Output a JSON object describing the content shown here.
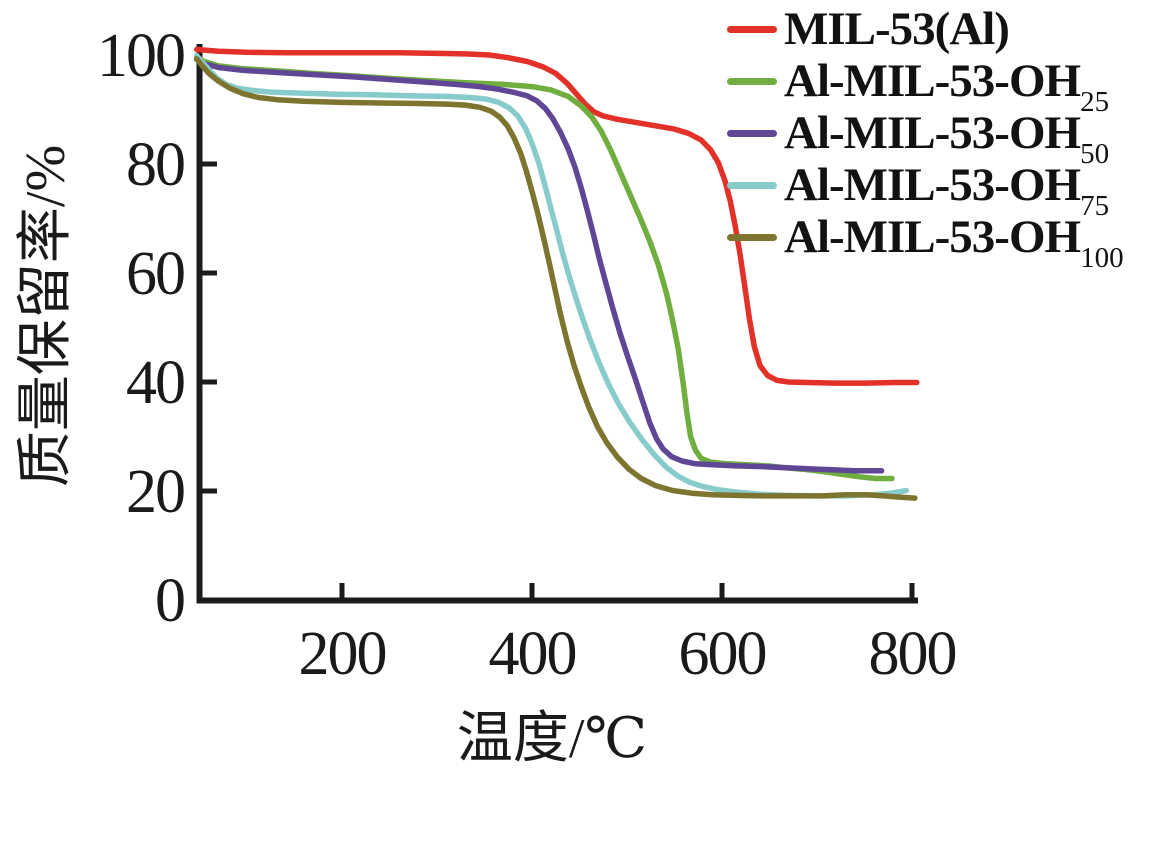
{
  "figure": {
    "background_color": "#ffffff",
    "axis_color": "#1b1b1b",
    "text_color": "#1a1a1a"
  },
  "chart_data": {
    "type": "line",
    "title": "",
    "xlabel": "温度/℃",
    "ylabel": "质量保留率/%",
    "xlim": [
      47,
      805
    ],
    "ylim": [
      0,
      103
    ],
    "x_ticks": [
      200,
      400,
      600,
      800
    ],
    "y_ticks": [
      0,
      20,
      40,
      60,
      80,
      100
    ],
    "grid": false,
    "legend_position": "top-right",
    "series": [
      {
        "id": "mil-53-al",
        "name": "MIL-53(Al)",
        "legend_base": "MIL-53(Al)",
        "legend_sub": "",
        "color": "#e23128",
        "points": [
          [
            47,
            101
          ],
          [
            70,
            100.7
          ],
          [
            100,
            100.5
          ],
          [
            140,
            100.4
          ],
          [
            180,
            100.4
          ],
          [
            220,
            100.4
          ],
          [
            260,
            100.4
          ],
          [
            300,
            100.3
          ],
          [
            330,
            100.2
          ],
          [
            355,
            100.0
          ],
          [
            375,
            99.5
          ],
          [
            395,
            98.8
          ],
          [
            412,
            97.8
          ],
          [
            425,
            96.6
          ],
          [
            437,
            94.8
          ],
          [
            447,
            92.8
          ],
          [
            456,
            91.0
          ],
          [
            465,
            89.6
          ],
          [
            475,
            88.8
          ],
          [
            490,
            88.2
          ],
          [
            510,
            87.6
          ],
          [
            530,
            87.0
          ],
          [
            550,
            86.4
          ],
          [
            565,
            85.6
          ],
          [
            578,
            84.4
          ],
          [
            588,
            82.6
          ],
          [
            596,
            80.3
          ],
          [
            603,
            77.0
          ],
          [
            609,
            73.0
          ],
          [
            614,
            68.5
          ],
          [
            619,
            63.5
          ],
          [
            624,
            57.5
          ],
          [
            629,
            51.5
          ],
          [
            634,
            46.5
          ],
          [
            640,
            43.0
          ],
          [
            648,
            41.2
          ],
          [
            658,
            40.3
          ],
          [
            670,
            40.0
          ],
          [
            690,
            39.9
          ],
          [
            720,
            39.8
          ],
          [
            750,
            39.8
          ],
          [
            780,
            39.9
          ],
          [
            805,
            39.9
          ]
        ]
      },
      {
        "id": "al-mil-53-oh-25",
        "name": "Al-MIL-53-OH25",
        "legend_base": "Al-MIL-53-OH",
        "legend_sub": "25",
        "color": "#6fae3f",
        "points": [
          [
            47,
            99.6
          ],
          [
            55,
            98.8
          ],
          [
            70,
            98.0
          ],
          [
            95,
            97.5
          ],
          [
            130,
            97.1
          ],
          [
            170,
            96.6
          ],
          [
            210,
            96.2
          ],
          [
            250,
            95.7
          ],
          [
            290,
            95.3
          ],
          [
            330,
            94.9
          ],
          [
            370,
            94.6
          ],
          [
            400,
            94.2
          ],
          [
            420,
            93.6
          ],
          [
            438,
            92.4
          ],
          [
            452,
            90.6
          ],
          [
            463,
            88.6
          ],
          [
            473,
            86.0
          ],
          [
            483,
            82.5
          ],
          [
            493,
            78.5
          ],
          [
            503,
            74.5
          ],
          [
            513,
            70.5
          ],
          [
            523,
            66.3
          ],
          [
            533,
            61.5
          ],
          [
            542,
            56.0
          ],
          [
            549,
            50.5
          ],
          [
            554,
            46.0
          ],
          [
            559,
            40.0
          ],
          [
            563,
            34.5
          ],
          [
            567,
            30.0
          ],
          [
            572,
            27.5
          ],
          [
            578,
            26.0
          ],
          [
            588,
            25.3
          ],
          [
            605,
            25.0
          ],
          [
            625,
            24.8
          ],
          [
            648,
            24.6
          ],
          [
            665,
            24.3
          ],
          [
            685,
            24.0
          ],
          [
            705,
            23.6
          ],
          [
            725,
            23.1
          ],
          [
            745,
            22.6
          ],
          [
            762,
            22.3
          ],
          [
            779,
            22.3
          ]
        ]
      },
      {
        "id": "al-mil-53-oh-50",
        "name": "Al-MIL-53-OH50",
        "legend_base": "Al-MIL-53-OH",
        "legend_sub": "50",
        "color": "#5f4796",
        "points": [
          [
            47,
            99.2
          ],
          [
            55,
            98.4
          ],
          [
            70,
            97.7
          ],
          [
            95,
            97.2
          ],
          [
            130,
            96.8
          ],
          [
            170,
            96.4
          ],
          [
            210,
            96.0
          ],
          [
            250,
            95.5
          ],
          [
            290,
            95.0
          ],
          [
            320,
            94.6
          ],
          [
            345,
            94.2
          ],
          [
            365,
            93.7
          ],
          [
            382,
            93.1
          ],
          [
            395,
            92.5
          ],
          [
            405,
            91.6
          ],
          [
            414,
            90.2
          ],
          [
            422,
            88.3
          ],
          [
            430,
            85.8
          ],
          [
            438,
            82.8
          ],
          [
            445,
            79.5
          ],
          [
            452,
            75.5
          ],
          [
            459,
            71.0
          ],
          [
            465,
            66.8
          ],
          [
            471,
            62.5
          ],
          [
            478,
            58.0
          ],
          [
            485,
            53.5
          ],
          [
            493,
            48.8
          ],
          [
            501,
            44.5
          ],
          [
            509,
            40.5
          ],
          [
            517,
            36.2
          ],
          [
            524,
            32.5
          ],
          [
            531,
            29.6
          ],
          [
            538,
            27.7
          ],
          [
            547,
            26.3
          ],
          [
            558,
            25.5
          ],
          [
            572,
            25.0
          ],
          [
            590,
            24.8
          ],
          [
            615,
            24.6
          ],
          [
            640,
            24.5
          ],
          [
            665,
            24.3
          ],
          [
            690,
            24.1
          ],
          [
            715,
            23.9
          ],
          [
            740,
            23.7
          ],
          [
            768,
            23.7
          ]
        ]
      },
      {
        "id": "al-mil-53-oh-75",
        "name": "Al-MIL-53-OH75",
        "legend_base": "Al-MIL-53-OH",
        "legend_sub": "75",
        "color": "#87cbca",
        "points": [
          [
            47,
            99.9
          ],
          [
            53,
            98.7
          ],
          [
            60,
            97.3
          ],
          [
            68,
            95.8
          ],
          [
            78,
            94.6
          ],
          [
            90,
            93.9
          ],
          [
            105,
            93.5
          ],
          [
            125,
            93.2
          ],
          [
            155,
            93.0
          ],
          [
            195,
            92.8
          ],
          [
            235,
            92.7
          ],
          [
            275,
            92.5
          ],
          [
            310,
            92.4
          ],
          [
            335,
            92.2
          ],
          [
            352,
            91.9
          ],
          [
            365,
            91.3
          ],
          [
            376,
            90.3
          ],
          [
            385,
            88.8
          ],
          [
            393,
            86.6
          ],
          [
            400,
            83.8
          ],
          [
            407,
            80.3
          ],
          [
            413,
            76.5
          ],
          [
            419,
            72.5
          ],
          [
            425,
            68.5
          ],
          [
            432,
            63.8
          ],
          [
            439,
            59.5
          ],
          [
            446,
            55.5
          ],
          [
            453,
            51.8
          ],
          [
            461,
            47.8
          ],
          [
            470,
            43.8
          ],
          [
            480,
            39.8
          ],
          [
            491,
            36.0
          ],
          [
            503,
            32.6
          ],
          [
            516,
            29.4
          ],
          [
            529,
            26.6
          ],
          [
            541,
            24.4
          ],
          [
            553,
            22.8
          ],
          [
            566,
            21.6
          ],
          [
            580,
            20.8
          ],
          [
            597,
            20.2
          ],
          [
            615,
            19.8
          ],
          [
            640,
            19.4
          ],
          [
            670,
            19.2
          ],
          [
            700,
            19.1
          ],
          [
            730,
            19.1
          ],
          [
            760,
            19.3
          ],
          [
            778,
            19.6
          ],
          [
            794,
            20.1
          ]
        ]
      },
      {
        "id": "al-mil-53-oh-100",
        "name": "Al-MIL-53-OH100",
        "legend_base": "Al-MIL-53-OH",
        "legend_sub": "100",
        "color": "#7d752f",
        "points": [
          [
            47,
            99.3
          ],
          [
            53,
            98.0
          ],
          [
            60,
            96.6
          ],
          [
            70,
            95.2
          ],
          [
            82,
            93.9
          ],
          [
            96,
            92.9
          ],
          [
            112,
            92.2
          ],
          [
            132,
            91.8
          ],
          [
            160,
            91.5
          ],
          [
            200,
            91.3
          ],
          [
            240,
            91.2
          ],
          [
            280,
            91.1
          ],
          [
            310,
            91.0
          ],
          [
            330,
            90.8
          ],
          [
            345,
            90.4
          ],
          [
            357,
            89.7
          ],
          [
            366,
            88.6
          ],
          [
            374,
            87.0
          ],
          [
            381,
            84.8
          ],
          [
            388,
            82.0
          ],
          [
            394,
            78.7
          ],
          [
            400,
            75.0
          ],
          [
            406,
            71.0
          ],
          [
            412,
            66.6
          ],
          [
            418,
            62.0
          ],
          [
            424,
            57.2
          ],
          [
            430,
            52.4
          ],
          [
            437,
            47.5
          ],
          [
            444,
            43.2
          ],
          [
            452,
            39.0
          ],
          [
            460,
            35.3
          ],
          [
            469,
            31.8
          ],
          [
            479,
            28.8
          ],
          [
            490,
            26.2
          ],
          [
            502,
            24.0
          ],
          [
            515,
            22.3
          ],
          [
            530,
            21.0
          ],
          [
            548,
            20.1
          ],
          [
            568,
            19.6
          ],
          [
            590,
            19.3
          ],
          [
            615,
            19.2
          ],
          [
            645,
            19.1
          ],
          [
            675,
            19.1
          ],
          [
            705,
            19.1
          ],
          [
            730,
            19.3
          ],
          [
            752,
            19.3
          ],
          [
            770,
            19.1
          ],
          [
            785,
            18.9
          ],
          [
            803,
            18.7
          ]
        ]
      }
    ]
  }
}
